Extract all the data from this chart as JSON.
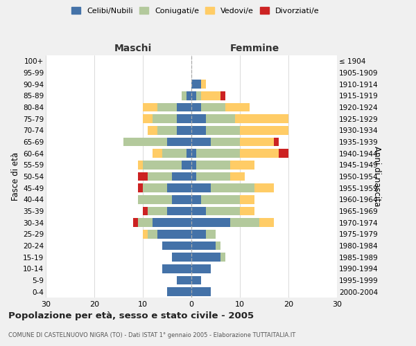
{
  "age_groups": [
    "0-4",
    "5-9",
    "10-14",
    "15-19",
    "20-24",
    "25-29",
    "30-34",
    "35-39",
    "40-44",
    "45-49",
    "50-54",
    "55-59",
    "60-64",
    "65-69",
    "70-74",
    "75-79",
    "80-84",
    "85-89",
    "90-94",
    "95-99",
    "100+"
  ],
  "birth_years": [
    "2000-2004",
    "1995-1999",
    "1990-1994",
    "1985-1989",
    "1980-1984",
    "1975-1979",
    "1970-1974",
    "1965-1969",
    "1960-1964",
    "1955-1959",
    "1950-1954",
    "1945-1949",
    "1940-1944",
    "1935-1939",
    "1930-1934",
    "1925-1929",
    "1920-1924",
    "1915-1919",
    "1910-1914",
    "1905-1909",
    "≤ 1904"
  ],
  "colors": {
    "celibe": "#4472A8",
    "coniugato": "#B3C99C",
    "vedovo": "#FFCC66",
    "divorziato": "#CC2222"
  },
  "male": {
    "celibe": [
      5,
      3,
      6,
      4,
      6,
      7,
      8,
      5,
      4,
      5,
      4,
      2,
      1,
      5,
      3,
      3,
      3,
      1,
      0,
      0,
      0
    ],
    "coniugato": [
      0,
      0,
      0,
      0,
      0,
      2,
      3,
      4,
      7,
      5,
      5,
      8,
      5,
      9,
      4,
      5,
      4,
      1,
      0,
      0,
      0
    ],
    "vedovo": [
      0,
      0,
      0,
      0,
      0,
      1,
      0,
      0,
      0,
      0,
      0,
      1,
      2,
      0,
      2,
      2,
      3,
      0,
      0,
      0,
      0
    ],
    "divorziato": [
      0,
      0,
      0,
      0,
      0,
      0,
      1,
      1,
      0,
      1,
      2,
      0,
      0,
      0,
      0,
      0,
      0,
      0,
      0,
      0,
      0
    ]
  },
  "female": {
    "nubile": [
      4,
      2,
      4,
      6,
      5,
      3,
      8,
      3,
      2,
      4,
      1,
      1,
      1,
      4,
      3,
      3,
      2,
      1,
      2,
      0,
      0
    ],
    "coniugata": [
      0,
      0,
      0,
      1,
      1,
      2,
      6,
      7,
      8,
      9,
      7,
      7,
      9,
      6,
      7,
      6,
      5,
      1,
      0,
      0,
      0
    ],
    "vedova": [
      0,
      0,
      0,
      0,
      0,
      0,
      3,
      3,
      3,
      4,
      3,
      5,
      8,
      7,
      10,
      11,
      5,
      4,
      1,
      0,
      0
    ],
    "divorziata": [
      0,
      0,
      0,
      0,
      0,
      0,
      0,
      0,
      0,
      0,
      0,
      0,
      2,
      1,
      0,
      0,
      0,
      1,
      0,
      0,
      0
    ]
  },
  "xlim": 30,
  "title": "Popolazione per età, sesso e stato civile - 2005",
  "subtitle": "COMUNE DI CASTELNUOVO NIGRA (TO) - Dati ISTAT 1° gennaio 2005 - Elaborazione TUTTAITALIA.IT",
  "ylabel_left": "Fasce di età",
  "ylabel_right": "Anni di nascita",
  "header_left": "Maschi",
  "header_right": "Femmine",
  "legend_labels": [
    "Celibi/Nubili",
    "Coniugati/e",
    "Vedovi/e",
    "Divorziati/e"
  ],
  "bg_color": "#f0f0f0",
  "plot_bg": "#ffffff"
}
